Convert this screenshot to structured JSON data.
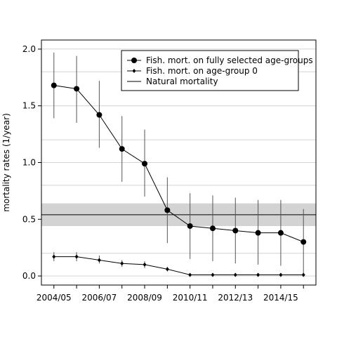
{
  "chart_data": {
    "type": "line",
    "ylabel": "mortality rates (1/year)",
    "x": [
      0,
      1,
      2,
      3,
      4,
      5,
      6,
      7,
      8,
      9,
      10,
      11
    ],
    "x_tick_labels": [
      {
        "x": 0,
        "label": "2004/05"
      },
      {
        "x": 2,
        "label": "2006/07"
      },
      {
        "x": 4,
        "label": "2008/09"
      },
      {
        "x": 6,
        "label": "2010/11"
      },
      {
        "x": 8,
        "label": "2012/13"
      },
      {
        "x": 10,
        "label": "2014/15"
      }
    ],
    "y_ticks": [
      "0.0",
      "0.5",
      "1.0",
      "1.5",
      "2.0"
    ],
    "ylim": [
      -0.08,
      2.08
    ],
    "xlim": [
      -0.55,
      11.55
    ],
    "grid": true,
    "y_gridlines": [
      0,
      0.2,
      0.5,
      0.8,
      1.0,
      1.2,
      1.5,
      1.8,
      2.0
    ],
    "legend_position": "top-right",
    "series": [
      {
        "name": "Fish. mort. on fully selected age-groups",
        "marker": "circle",
        "values": [
          1.68,
          1.65,
          1.42,
          1.12,
          0.99,
          0.58,
          0.44,
          0.42,
          0.4,
          0.38,
          0.38,
          0.3
        ],
        "lower": [
          1.39,
          1.35,
          1.13,
          0.83,
          0.7,
          0.29,
          0.15,
          0.13,
          0.11,
          0.1,
          0.09,
          0.01
        ],
        "upper": [
          1.97,
          1.94,
          1.72,
          1.41,
          1.29,
          0.87,
          0.73,
          0.71,
          0.69,
          0.67,
          0.67,
          0.59
        ]
      },
      {
        "name": "Fish. mort. on age-group 0",
        "marker": "small-diamond",
        "values": [
          0.17,
          0.17,
          0.14,
          0.11,
          0.1,
          0.06,
          0.01,
          0.01,
          0.01,
          0.01,
          0.01,
          0.01
        ],
        "lower": [
          0.13,
          0.13,
          0.11,
          0.08,
          0.07,
          0.04,
          0.0,
          0.0,
          0.0,
          0.0,
          0.0,
          0.0
        ],
        "upper": [
          0.21,
          0.21,
          0.18,
          0.14,
          0.13,
          0.08,
          0.02,
          0.02,
          0.02,
          0.02,
          0.02,
          0.02
        ]
      },
      {
        "name": "Natural mortality",
        "marker": "none",
        "value": 0.54,
        "band": [
          0.44,
          0.64
        ]
      }
    ],
    "colors": {
      "line": "#000000",
      "band": "#d3d3d3",
      "grid": "#d3d3d3",
      "error_bar": "#555555"
    }
  }
}
